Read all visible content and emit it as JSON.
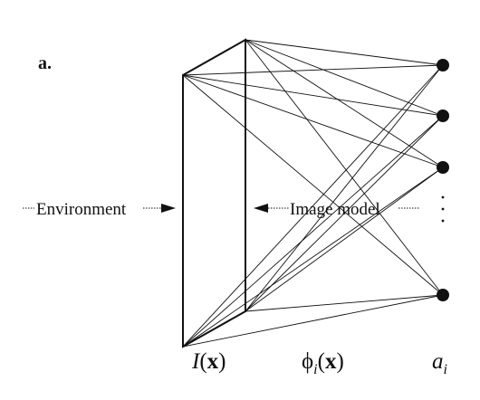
{
  "figure": {
    "panel_label": "a.",
    "left_label": "Environment",
    "right_label": "Image model",
    "bottom_labels": {
      "image": {
        "symbol": "I",
        "arg": "x"
      },
      "basis": {
        "symbol": "ϕ",
        "sub": "i",
        "arg": "x"
      },
      "coef": {
        "symbol": "a",
        "sub": "i"
      }
    },
    "output_nodes": 4,
    "has_vertical_ellipsis": true,
    "ink_color": "#111111"
  }
}
